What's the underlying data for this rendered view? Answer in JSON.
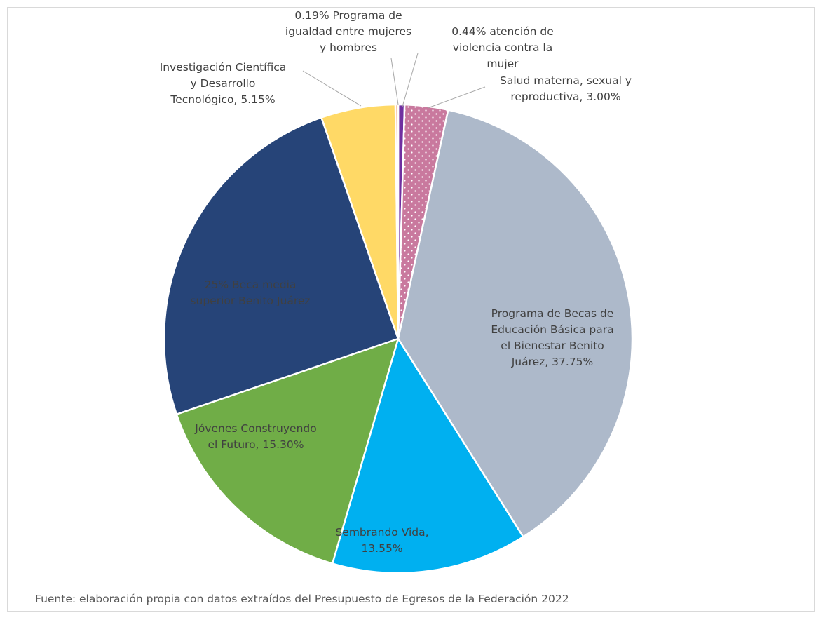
{
  "chart_data": {
    "type": "pie",
    "title": "",
    "slices": [
      {
        "label": "0.44% atención de violencia contra la mujer",
        "lines": [
          "0.44% atención de",
          "violencia contra la",
          "mujer"
        ],
        "value": 0.44,
        "color": "#7030a0"
      },
      {
        "label": "Salud materna, sexual y reproductiva, 3.00%",
        "lines": [
          "Salud materna, sexual y",
          "reproductiva, 3.00%"
        ],
        "value": 3.0,
        "color": "#c9799e",
        "pattern": "dots"
      },
      {
        "label": "Programa de Becas de Educación Básica para el Bienestar Benito Juárez, 37.75%",
        "lines": [
          "Programa de Becas de",
          "Educación Básica para",
          "el Bienestar Benito",
          "Juárez, 37.75%"
        ],
        "value": 37.75,
        "color": "#adb9ca"
      },
      {
        "label": "Sembrando Vida, 13.55%",
        "lines": [
          "Sembrando Vida,",
          "13.55%"
        ],
        "value": 13.55,
        "color": "#00b0f0"
      },
      {
        "label": "Jóvenes Construyendo el Futuro, 15.30%",
        "lines": [
          "Jóvenes Construyendo",
          "el Futuro, 15.30%"
        ],
        "value": 15.3,
        "color": "#70ad47"
      },
      {
        "label": "25% Beca media superior Benito Juárez",
        "lines": [
          "25% Beca media",
          "superior Benito Juárez"
        ],
        "value": 25.0,
        "color": "#264478"
      },
      {
        "label": "Investigación Científica y Desarrollo Tecnológico, 5.15%",
        "lines": [
          "Investigación Científica",
          "y Desarrollo",
          "Tecnológico, 5.15%"
        ],
        "value": 5.15,
        "color": "#ffd966"
      },
      {
        "label": "0.19% Programa de igualdad entre mujeres y hombres",
        "lines": [
          "0.19% Programa de",
          "igualdad entre mujeres",
          "y hombres"
        ],
        "value": 0.19,
        "color": "#f4b183"
      }
    ]
  },
  "source_note": "Fuente: elaboración propia con datos extraídos del Presupuesto de Egresos de la Federación 2022"
}
